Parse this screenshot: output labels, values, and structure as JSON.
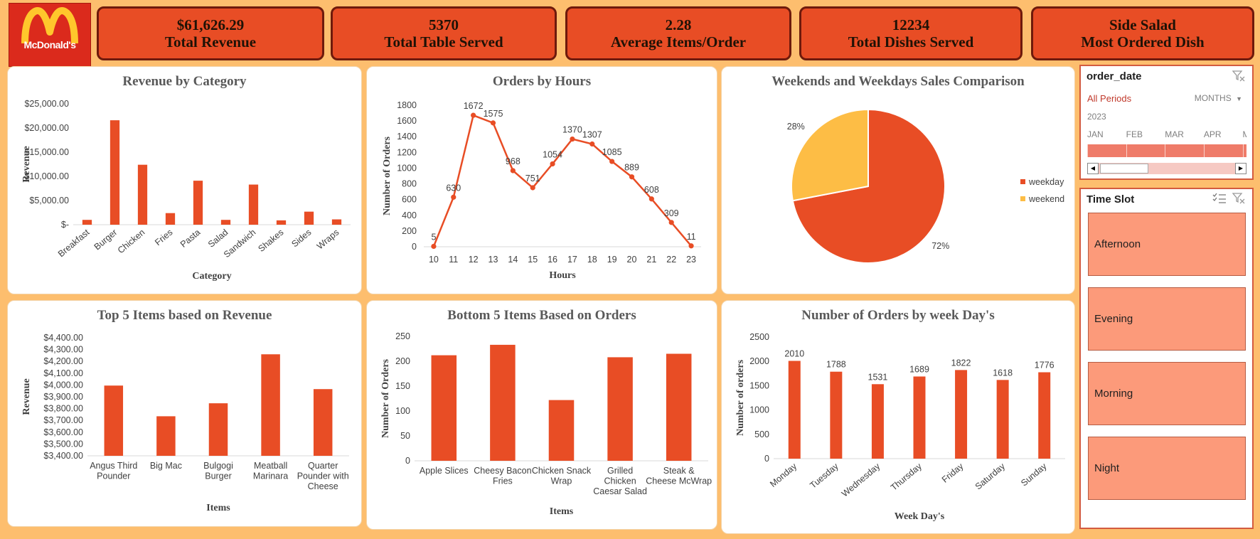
{
  "brand": {
    "logo_text": "McDonald's",
    "logo_color": "#db2a1c",
    "arch_color": "#ffc72c"
  },
  "kpis": [
    {
      "value": "$61,626.29",
      "label": "Total Revenue"
    },
    {
      "value": "5370",
      "label": "Total Table Served"
    },
    {
      "value": "2.28",
      "label": "Average Items/Order"
    },
    {
      "value": "12234",
      "label": "Total Dishes Served"
    },
    {
      "value": "Side Salad",
      "label": "Most Ordered Dish"
    }
  ],
  "colors": {
    "bar": "#e84d25",
    "weekday": "#e84d25",
    "weekend": "#fdbd45",
    "background": "#fdbe6e"
  },
  "chart_data": [
    {
      "id": "revenue-by-category",
      "type": "bar",
      "title": "Revenue by Category",
      "xlabel": "Category",
      "ylabel": "Revenue",
      "categories": [
        "Breakfast",
        "Burger",
        "Chicken",
        "Fries",
        "Pasta",
        "Salad",
        "Sandwich",
        "Shakes",
        "Sides",
        "Wraps"
      ],
      "values": [
        1000,
        21600,
        12400,
        2400,
        9100,
        1000,
        8300,
        900,
        2700,
        1100
      ],
      "ylim": [
        0,
        25000
      ],
      "yticks": [
        "$-",
        "$5,000.00",
        "$10,000.00",
        "$15,000.00",
        "$20,000.00",
        "$25,000.00"
      ],
      "grid": false
    },
    {
      "id": "orders-by-hours",
      "type": "line",
      "title": "Orders by Hours",
      "xlabel": "Hours",
      "ylabel": "Number of Orders",
      "x": [
        "10",
        "11",
        "12",
        "13",
        "14",
        "15",
        "16",
        "17",
        "18",
        "19",
        "20",
        "21",
        "22",
        "23"
      ],
      "values": [
        5,
        630,
        1672,
        1575,
        968,
        751,
        1054,
        1370,
        1307,
        1085,
        889,
        608,
        309,
        11
      ],
      "ylim": [
        0,
        1800
      ],
      "yticks": [
        "0",
        "200",
        "400",
        "600",
        "800",
        "1000",
        "1200",
        "1400",
        "1600",
        "1800"
      ]
    },
    {
      "id": "weekend-weekday",
      "type": "pie",
      "title": "Weekends and Weekdays Sales Comparison",
      "slices": [
        {
          "name": "weekday",
          "value": 72,
          "label": "72%"
        },
        {
          "name": "weekend",
          "value": 28,
          "label": "28%"
        }
      ],
      "legend": "right"
    },
    {
      "id": "top5-revenue",
      "type": "bar",
      "title": "Top 5 Items based on Revenue",
      "xlabel": "Items",
      "ylabel": "Revenue",
      "categories": [
        "Angus Third Pounder",
        "Big Mac",
        "Bulgogi Burger",
        "Meatball Marinara",
        "Quarter Pounder with Cheese"
      ],
      "values": [
        3995,
        3735,
        3845,
        4260,
        3965
      ],
      "ylim": [
        3400,
        4400
      ],
      "yticks": [
        "$3,400.00",
        "$3,500.00",
        "$3,600.00",
        "$3,700.00",
        "$3,800.00",
        "$3,900.00",
        "$4,000.00",
        "$4,100.00",
        "$4,200.00",
        "$4,300.00",
        "$4,400.00"
      ]
    },
    {
      "id": "bottom5-orders",
      "type": "bar",
      "title": "Bottom 5 Items Based on Orders",
      "xlabel": "Items",
      "ylabel": "Number of Orders",
      "categories": [
        "Apple Slices",
        "Cheesy Bacon Fries",
        "Chicken Snack Wrap",
        "Grilled Chicken Caesar Salad",
        "Steak & Cheese McWrap"
      ],
      "values": [
        212,
        233,
        122,
        208,
        215
      ],
      "ylim": [
        0,
        250
      ],
      "yticks": [
        "0",
        "50",
        "100",
        "150",
        "200",
        "250"
      ]
    },
    {
      "id": "orders-by-weekday",
      "type": "bar",
      "title": "Number of Orders by week Day's",
      "xlabel": "Week Day's",
      "ylabel": "Number of orders",
      "categories": [
        "Monday",
        "Tuesday",
        "Wednesday",
        "Thursday",
        "Friday",
        "Saturday",
        "Sunday"
      ],
      "values": [
        2010,
        1788,
        1531,
        1689,
        1822,
        1618,
        1776
      ],
      "ylim": [
        0,
        2500
      ],
      "yticks": [
        "0",
        "500",
        "1000",
        "1500",
        "2000",
        "2500"
      ]
    }
  ],
  "date_slicer": {
    "title": "order_date",
    "period": "All Periods",
    "level": "MONTHS",
    "year": "2023",
    "months": [
      "JAN",
      "FEB",
      "MAR",
      "APR",
      "M"
    ],
    "filter_icon": "clear-filter-icon",
    "dropdown_icon": "caret-down-icon"
  },
  "time_slicer": {
    "title": "Time Slot",
    "items": [
      "Afternoon",
      "Evening",
      "Morning",
      "Night"
    ],
    "icons": [
      "multi-select-icon",
      "clear-filter-icon"
    ]
  }
}
